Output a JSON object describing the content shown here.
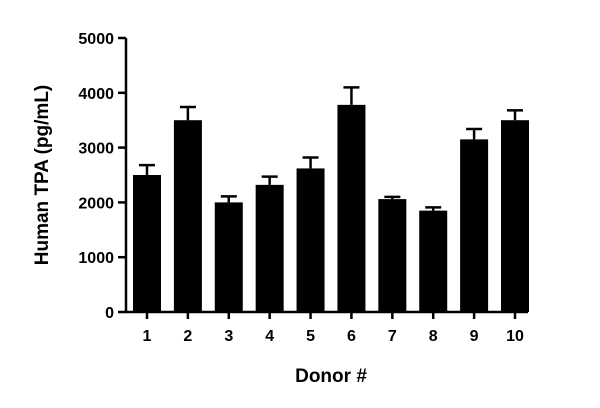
{
  "chart_data": {
    "type": "bar",
    "categories": [
      "1",
      "2",
      "3",
      "4",
      "5",
      "6",
      "7",
      "8",
      "9",
      "10"
    ],
    "values": [
      2500,
      3500,
      2000,
      2320,
      2620,
      3780,
      2060,
      1850,
      3150,
      3500
    ],
    "error_upper": [
      180,
      240,
      110,
      150,
      200,
      320,
      40,
      60,
      190,
      180
    ],
    "title": "",
    "xlabel": "Donor #",
    "ylabel": "Human TPA (pg/mL)",
    "ylim": [
      0,
      5000
    ],
    "yticks": [
      0,
      1000,
      2000,
      3000,
      4000,
      5000
    ],
    "grid": false,
    "bar_color": "#000000"
  }
}
